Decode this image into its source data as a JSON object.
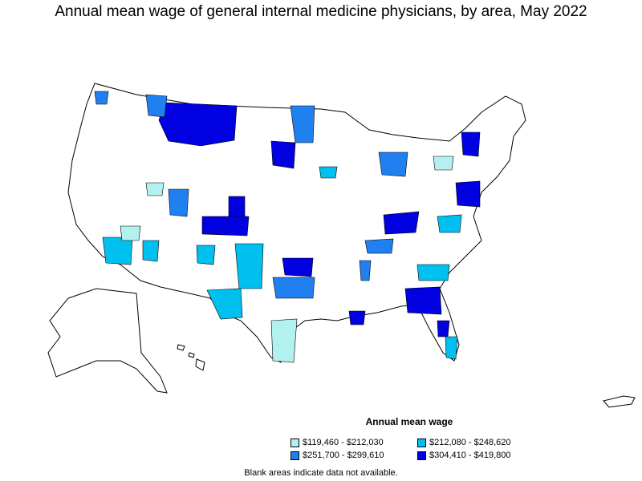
{
  "title": "Annual mean wage of general internal medicine physicians, by area, May 2022",
  "legend": {
    "title": "Annual mean wage",
    "items": [
      {
        "label": "$119,460 - $212,030",
        "color": "#b3f0f0"
      },
      {
        "label": "$212,080 - $248,620",
        "color": "#00c0f0"
      },
      {
        "label": "$251,700 - $299,610",
        "color": "#2080f0"
      },
      {
        "label": "$304,410 - $419,800",
        "color": "#0000e0"
      }
    ]
  },
  "footnote": "Blank areas indicate data not available.",
  "colors": {
    "outline": "#000000",
    "blank": "#ffffff"
  }
}
